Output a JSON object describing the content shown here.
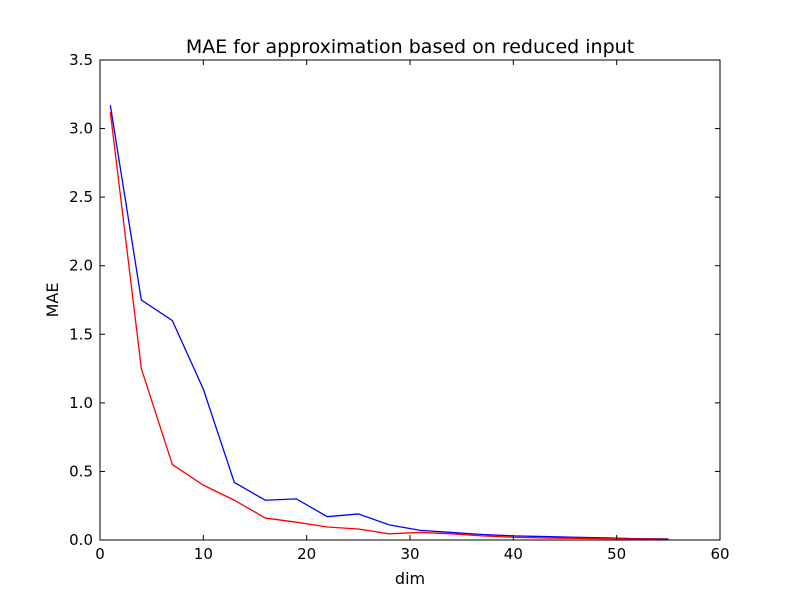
{
  "chart_data": {
    "type": "line",
    "title": "MAE for approximation based on reduced input",
    "xlabel": "dim",
    "ylabel": "MAE",
    "xlim": [
      0,
      60
    ],
    "ylim": [
      0,
      3.5
    ],
    "xticks": [
      "0",
      "10",
      "20",
      "30",
      "40",
      "50",
      "60"
    ],
    "yticks": [
      "0.0",
      "0.5",
      "1.0",
      "1.5",
      "2.0",
      "2.5",
      "3.0",
      "3.5"
    ],
    "grid": false,
    "legend": "none",
    "series": [
      {
        "color": "#0000ff",
        "x": [
          1,
          4,
          7,
          10,
          13,
          16,
          19,
          22,
          25,
          28,
          31,
          34,
          37,
          40,
          43,
          46,
          49,
          52,
          55
        ],
        "y": [
          3.17,
          1.75,
          1.6,
          1.1,
          0.42,
          0.29,
          0.3,
          0.17,
          0.19,
          0.11,
          0.07,
          0.055,
          0.04,
          0.03,
          0.025,
          0.02,
          0.015,
          0.01,
          0.008
        ]
      },
      {
        "color": "#ff0000",
        "x": [
          1,
          4,
          7,
          10,
          13,
          16,
          19,
          22,
          25,
          28,
          31,
          34,
          37,
          40,
          43,
          46,
          49,
          52,
          55
        ],
        "y": [
          3.12,
          1.25,
          0.55,
          0.4,
          0.29,
          0.16,
          0.13,
          0.095,
          0.08,
          0.045,
          0.055,
          0.045,
          0.03,
          0.02,
          0.015,
          0.012,
          0.01,
          0.008,
          0.005
        ]
      }
    ]
  }
}
